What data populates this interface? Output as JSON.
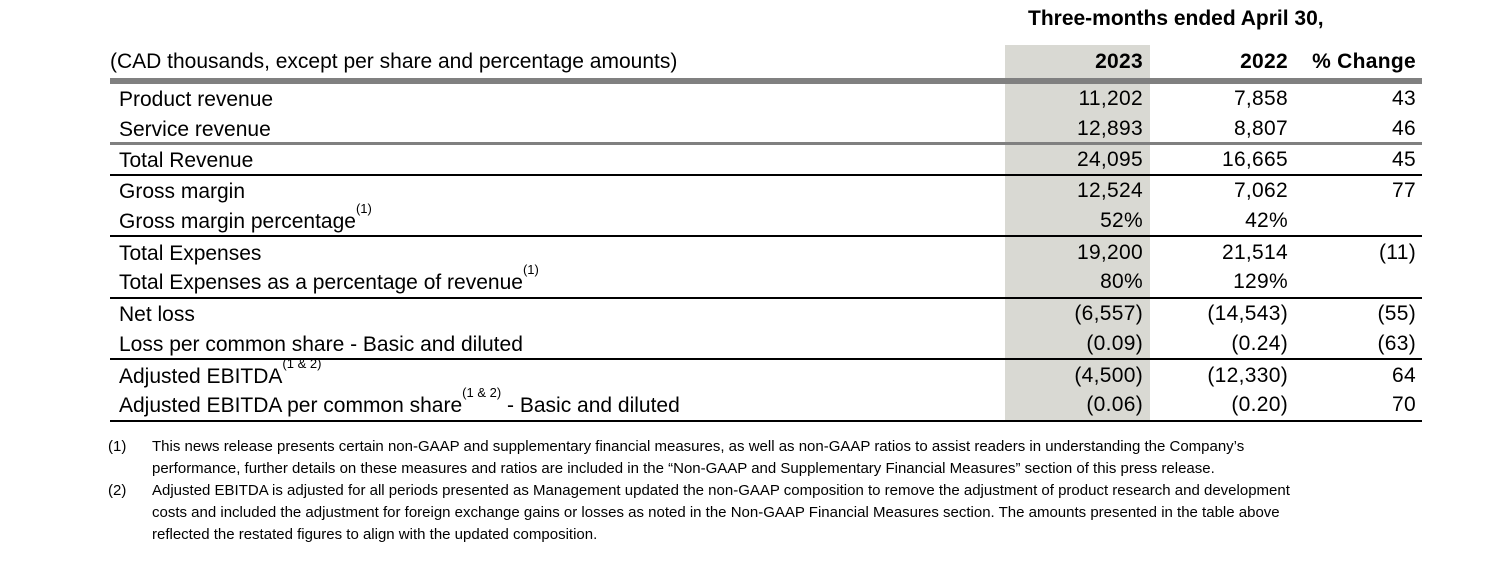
{
  "table": {
    "period_header": "Three-months ended April 30,",
    "caption": "(CAD thousands, except per share and percentage amounts)",
    "columns": [
      "2023",
      "2022",
      "% Change"
    ],
    "highlight_color": "#d9d9d3",
    "rows": [
      {
        "label_pre": "Product revenue",
        "label_sup": "",
        "label_post": "",
        "v2023": "11,202",
        "v2022": "7,858",
        "change": "43"
      },
      {
        "label_pre": "Service revenue",
        "label_sup": "",
        "label_post": "",
        "v2023": "12,893",
        "v2022": "8,807",
        "change": "46"
      },
      {
        "label_pre": "Total Revenue",
        "label_sup": "",
        "label_post": "",
        "v2023": "24,095",
        "v2022": "16,665",
        "change": "45"
      },
      {
        "label_pre": "Gross margin",
        "label_sup": "",
        "label_post": "",
        "v2023": "12,524",
        "v2022": "7,062",
        "change": "77"
      },
      {
        "label_pre": "Gross margin percentage",
        "label_sup": "(1)",
        "label_post": "",
        "v2023": "52%",
        "v2022": "42%",
        "change": ""
      },
      {
        "label_pre": "Total Expenses",
        "label_sup": "",
        "label_post": "",
        "v2023": "19,200",
        "v2022": "21,514",
        "change": "(11)"
      },
      {
        "label_pre": "Total Expenses as a percentage of revenue",
        "label_sup": "(1)",
        "label_post": "",
        "v2023": "80%",
        "v2022": "129%",
        "change": ""
      },
      {
        "label_pre": "Net loss",
        "label_sup": "",
        "label_post": "",
        "v2023": "(6,557)",
        "v2022": "(14,543)",
        "change": "(55)"
      },
      {
        "label_pre": "Loss per common share - Basic and diluted",
        "label_sup": "",
        "label_post": "",
        "v2023": "(0.09)",
        "v2022": "(0.24)",
        "change": "(63)"
      },
      {
        "label_pre": "Adjusted EBITDA",
        "label_sup": "(1 & 2)",
        "label_post": "",
        "v2023": "(4,500)",
        "v2022": "(12,330)",
        "change": "64"
      },
      {
        "label_pre": "Adjusted EBITDA per common share",
        "label_sup": "(1 & 2)",
        "label_post": " - Basic and diluted",
        "v2023": "(0.06)",
        "v2022": "(0.20)",
        "change": "70"
      }
    ]
  },
  "footnotes": [
    {
      "marker": "(1)",
      "lines": [
        "This news release presents certain non-GAAP and supplementary financial measures, as well as non-GAAP ratios to assist readers in understanding the Company’s",
        "performance, further details on these measures and ratios are included in the “Non-GAAP and Supplementary Financial Measures” section of this press release."
      ]
    },
    {
      "marker": "(2)",
      "lines": [
        "Adjusted EBITDA is adjusted for all periods presented as Management updated the non-GAAP composition to remove the adjustment of product research and development",
        "costs and included the adjustment for foreign exchange gains or losses as noted in the Non-GAAP Financial Measures section. The amounts presented in the table above",
        "reflected the restated figures to align with the updated composition."
      ]
    }
  ]
}
